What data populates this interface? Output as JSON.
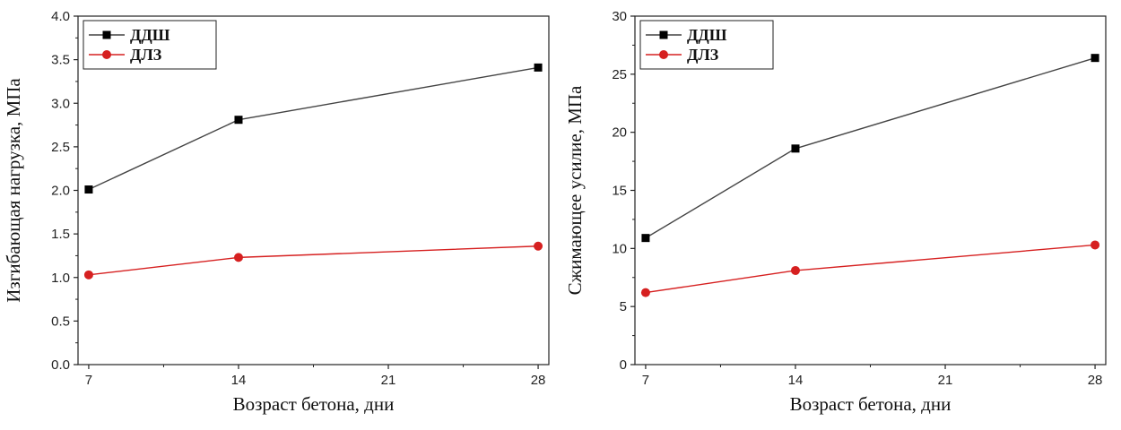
{
  "chart_data": [
    {
      "type": "line",
      "title": "",
      "xlabel": "Возраст бетона, дни",
      "ylabel": "Изгибающая нагрузка, МПа",
      "x": [
        7,
        14,
        28
      ],
      "xticks": [
        7,
        14,
        21,
        28
      ],
      "xlim": [
        6.5,
        28.5
      ],
      "ylim": [
        0,
        4.0
      ],
      "yticks": [
        0,
        0.5,
        1.0,
        1.5,
        2.0,
        2.5,
        3.0,
        3.5,
        4.0
      ],
      "ytick_labels": [
        "0.0",
        "0.5",
        "1.0",
        "1.5",
        "2.0",
        "2.5",
        "3.0",
        "3.5",
        "4.0"
      ],
      "grid": false,
      "legend_position": "top-left",
      "series": [
        {
          "name": "ДДШ",
          "values": [
            2.01,
            2.81,
            3.41
          ],
          "color": "#000000",
          "marker": "square"
        },
        {
          "name": "ДЛЗ",
          "values": [
            1.03,
            1.23,
            1.36
          ],
          "color": "#d62020",
          "marker": "circle"
        }
      ]
    },
    {
      "type": "line",
      "title": "",
      "xlabel": "Возраст бетона, дни",
      "ylabel": "Сжимающее усилие, МПа",
      "x": [
        7,
        14,
        28
      ],
      "xticks": [
        7,
        14,
        21,
        28
      ],
      "xlim": [
        6.5,
        28.5
      ],
      "ylim": [
        0,
        30
      ],
      "yticks": [
        0,
        5,
        10,
        15,
        20,
        25,
        30
      ],
      "ytick_labels": [
        "0",
        "5",
        "10",
        "15",
        "20",
        "25",
        "30"
      ],
      "grid": false,
      "legend_position": "top-left",
      "series": [
        {
          "name": "ДДШ",
          "values": [
            10.9,
            18.6,
            26.4
          ],
          "color": "#000000",
          "marker": "square"
        },
        {
          "name": "ДЛЗ",
          "values": [
            6.2,
            8.1,
            10.3
          ],
          "color": "#d62020",
          "marker": "circle"
        }
      ]
    }
  ]
}
